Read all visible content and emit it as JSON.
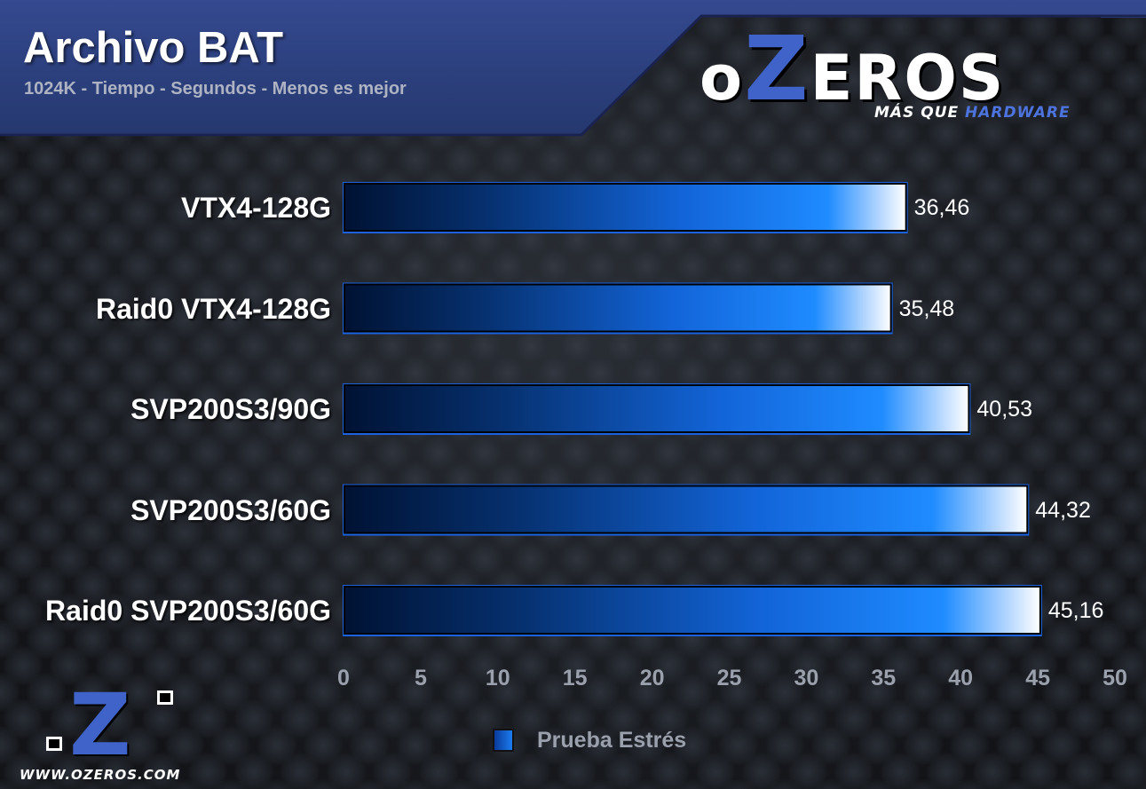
{
  "header": {
    "title": "Archivo BAT",
    "subtitle": "1024K - Tiempo - Segundos - Menos es mejor"
  },
  "logo": {
    "o": "o",
    "z": "Z",
    "eros": "EROS",
    "tagline_prefix": "MÁS QUE ",
    "tagline_accent": "HARDWARE",
    "footer_url": "WWW.OZEROS.COM",
    "footer_z": "Z"
  },
  "legend": {
    "series_name": "Prueba Estrés",
    "placement": "bottom-center"
  },
  "colors": {
    "header_bg": "#2b3f80",
    "bar_dark": "#001233",
    "bar_mid": "#1264d8",
    "bar_light": "#1e8bff",
    "bar_highlight": "#ffffff",
    "brand_blue": "#3f63c8"
  },
  "chart_data": {
    "type": "bar",
    "orientation": "horizontal",
    "categories": [
      "VTX4-128G",
      "Raid0 VTX4-128G",
      "SVP200S3/90G",
      "SVP200S3/60G",
      "Raid0 SVP200S3/60G"
    ],
    "series": [
      {
        "name": "Prueba Estrés",
        "values": [
          36.46,
          35.48,
          40.53,
          44.32,
          45.16
        ],
        "value_labels": [
          "36,46",
          "35,48",
          "40,53",
          "44,32",
          "45,16"
        ]
      }
    ],
    "title": "Archivo BAT",
    "subtitle": "1024K - Tiempo - Segundos - Menos es mejor",
    "xlim": [
      0,
      50
    ],
    "ticks": [
      0,
      5,
      10,
      15,
      20,
      25,
      30,
      35,
      40,
      45,
      50
    ],
    "tick_labels": [
      "0",
      "5",
      "10",
      "15",
      "20",
      "25",
      "30",
      "35",
      "40",
      "45",
      "50"
    ],
    "grid": false,
    "legend": "bottom-center"
  }
}
